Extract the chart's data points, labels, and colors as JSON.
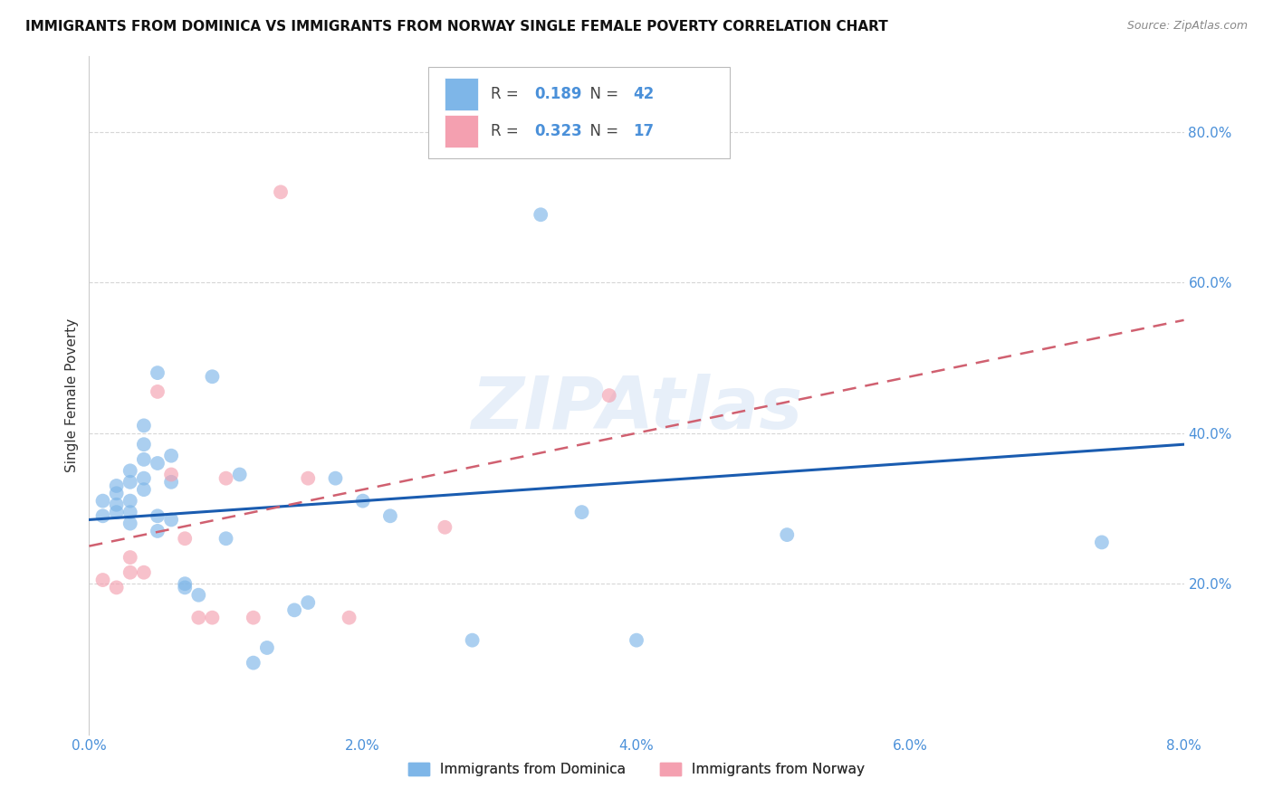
{
  "title": "IMMIGRANTS FROM DOMINICA VS IMMIGRANTS FROM NORWAY SINGLE FEMALE POVERTY CORRELATION CHART",
  "source": "Source: ZipAtlas.com",
  "xlabel_dominica": "Immigrants from Dominica",
  "xlabel_norway": "Immigrants from Norway",
  "ylabel": "Single Female Poverty",
  "watermark": "ZIPAtlas",
  "xlim": [
    0.0,
    0.08
  ],
  "ylim": [
    0.0,
    0.9
  ],
  "yticks": [
    0.2,
    0.4,
    0.6,
    0.8
  ],
  "xticks": [
    0.0,
    0.02,
    0.04,
    0.06,
    0.08
  ],
  "R_dominica": 0.189,
  "N_dominica": 42,
  "R_norway": 0.323,
  "N_norway": 17,
  "color_dominica": "#7EB6E8",
  "color_norway": "#F4A0B0",
  "color_line_dominica": "#1A5CB0",
  "color_line_norway": "#D06070",
  "color_axis_labels": "#4A90D9",
  "color_title": "#111111",
  "background_color": "#ffffff",
  "dominica_x": [
    0.001,
    0.001,
    0.002,
    0.002,
    0.002,
    0.002,
    0.003,
    0.003,
    0.003,
    0.003,
    0.003,
    0.004,
    0.004,
    0.004,
    0.004,
    0.004,
    0.005,
    0.005,
    0.005,
    0.005,
    0.006,
    0.006,
    0.006,
    0.007,
    0.007,
    0.008,
    0.009,
    0.01,
    0.011,
    0.012,
    0.013,
    0.015,
    0.016,
    0.018,
    0.02,
    0.022,
    0.028,
    0.033,
    0.036,
    0.04,
    0.051,
    0.074
  ],
  "dominica_y": [
    0.29,
    0.31,
    0.295,
    0.305,
    0.32,
    0.33,
    0.28,
    0.295,
    0.31,
    0.335,
    0.35,
    0.325,
    0.34,
    0.365,
    0.385,
    0.41,
    0.27,
    0.29,
    0.36,
    0.48,
    0.285,
    0.335,
    0.37,
    0.195,
    0.2,
    0.185,
    0.475,
    0.26,
    0.345,
    0.095,
    0.115,
    0.165,
    0.175,
    0.34,
    0.31,
    0.29,
    0.125,
    0.69,
    0.295,
    0.125,
    0.265,
    0.255
  ],
  "norway_x": [
    0.001,
    0.002,
    0.003,
    0.003,
    0.004,
    0.005,
    0.006,
    0.007,
    0.008,
    0.009,
    0.01,
    0.012,
    0.014,
    0.016,
    0.019,
    0.026,
    0.038
  ],
  "norway_y": [
    0.205,
    0.195,
    0.215,
    0.235,
    0.215,
    0.455,
    0.345,
    0.26,
    0.155,
    0.155,
    0.34,
    0.155,
    0.72,
    0.34,
    0.155,
    0.275,
    0.45
  ]
}
